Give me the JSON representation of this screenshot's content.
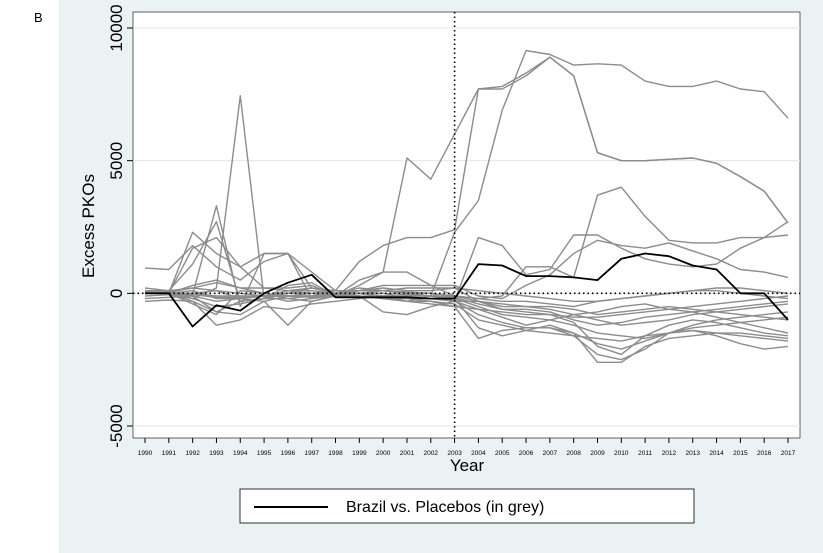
{
  "panel_label": "B",
  "legend": {
    "label": "Brazil vs. Placebos (in grey)"
  },
  "colors": {
    "background": "#eaf2f3",
    "plot": "#ffffff",
    "treated": "#000000",
    "placebo": "#8c8c8c",
    "grid": "#e6e6e6"
  },
  "chart_data": {
    "type": "line",
    "title": "",
    "xlabel": "Year",
    "ylabel": "Excess PKOs",
    "x": [
      1990,
      1991,
      1992,
      1993,
      1994,
      1995,
      1996,
      1997,
      1998,
      1999,
      2000,
      2001,
      2002,
      2003,
      2004,
      2005,
      2006,
      2007,
      2008,
      2009,
      2010,
      2011,
      2012,
      2013,
      2014,
      2015,
      2016,
      2017
    ],
    "xlim": [
      1990,
      2017
    ],
    "ylim": [
      -5000,
      10000
    ],
    "yticks": [
      -5000,
      0,
      5000,
      10000
    ],
    "ytick_labels": [
      "-5000",
      "0",
      "5000",
      "10000"
    ],
    "xtick_labels": [
      "1990",
      "1991",
      "1992",
      "1993",
      "1994",
      "1995",
      "1996",
      "1997",
      "1998",
      "1999",
      "2000",
      "2001",
      "2002",
      "2003",
      "2004",
      "2005",
      "2006",
      "2007",
      "2008",
      "2009",
      "2010",
      "2011",
      "2012",
      "2013",
      "2014",
      "2015",
      "2016",
      "2017"
    ],
    "grid": true,
    "intervention_year": 2003,
    "hline": 0,
    "legend_position": "bottom",
    "treated": {
      "name": "Brazil vs. Placebos (in grey)",
      "values": [
        0,
        0,
        -1250,
        -450,
        -650,
        0,
        400,
        700,
        -150,
        -150,
        -150,
        -150,
        -200,
        -200,
        1100,
        1050,
        650,
        650,
        600,
        500,
        1300,
        1500,
        1400,
        1050,
        900,
        0,
        0,
        -1000
      ]
    },
    "placebos": [
      [
        950,
        900,
        1800,
        1000,
        500,
        1200,
        1500,
        200,
        0,
        0,
        -200,
        -300,
        -100,
        2300,
        3500,
        6900,
        9150,
        9000,
        8600,
        8650,
        8600,
        8000,
        7800,
        7800,
        8000,
        7700,
        7600,
        6600
      ],
      [
        0,
        0,
        -50,
        3300,
        -500,
        1500,
        1500,
        800,
        100,
        1200,
        1800,
        2100,
        2100,
        2400,
        7700,
        7700,
        8200,
        8900,
        8200,
        5300,
        5000,
        5000,
        5050,
        5100,
        4900,
        4400,
        3850,
        2650
      ],
      [
        -100,
        -50,
        -200,
        200,
        7450,
        -200,
        100,
        0,
        -100,
        500,
        800,
        5100,
        4300,
        6000,
        7700,
        7800,
        8300,
        8900,
        8200,
        5300,
        5000,
        5000,
        5050,
        5100,
        4900,
        4400,
        3850,
        2650
      ],
      [
        0,
        0,
        -200,
        -500,
        -400,
        -200,
        0,
        200,
        0,
        200,
        100,
        0,
        0,
        -300,
        2100,
        1800,
        700,
        900,
        2200,
        2200,
        1700,
        1300,
        1100,
        1000,
        1100,
        1700,
        2100,
        2200
      ],
      [
        0,
        0,
        2300,
        1500,
        1000,
        1500,
        1500,
        -200,
        -100,
        300,
        800,
        800,
        300,
        -100,
        -200,
        -100,
        1000,
        1000,
        600,
        3700,
        4000,
        2900,
        2000,
        1900,
        1900,
        2100,
        2100,
        2700
      ],
      [
        0,
        0,
        1700,
        2100,
        1000,
        200,
        200,
        300,
        -100,
        100,
        300,
        300,
        300,
        300,
        -100,
        -200,
        300,
        700,
        1500,
        2000,
        1800,
        1700,
        1900,
        1600,
        1300,
        900,
        800,
        600
      ],
      [
        200,
        100,
        1100,
        2700,
        -300,
        -200,
        300,
        400,
        -100,
        0,
        0,
        -200,
        -200,
        -300,
        -600,
        -900,
        -1200,
        -1000,
        -800,
        -700,
        -500,
        -400,
        -600,
        -700,
        -900,
        -1100,
        -1300,
        -1500
      ],
      [
        -300,
        -250,
        -300,
        -1200,
        -1000,
        -500,
        -600,
        -400,
        -300,
        -200,
        -100,
        -300,
        -400,
        -500,
        -1700,
        -1400,
        -1300,
        -1300,
        -1600,
        -2300,
        -2500,
        -2100,
        -1500,
        -1400,
        -1600,
        -1900,
        -2100,
        -2000
      ],
      [
        -200,
        -150,
        -100,
        -700,
        -800,
        -300,
        -1200,
        -300,
        -100,
        -100,
        -700,
        -800,
        -500,
        -300,
        -300,
        -600,
        -700,
        -800,
        -1100,
        -2000,
        -2300,
        -1600,
        -1200,
        -1000,
        -1100,
        -1300,
        -1500,
        -1600
      ],
      [
        0,
        0,
        -400,
        -800,
        100,
        0,
        -200,
        -100,
        0,
        -100,
        -200,
        -200,
        -300,
        -400,
        -1000,
        -1200,
        -1400,
        -1500,
        -1600,
        -1700,
        -1800,
        -1600,
        -1500,
        -1400,
        -1500,
        -1600,
        -1700,
        -1800
      ],
      [
        0,
        0,
        100,
        -200,
        -200,
        -300,
        -100,
        -100,
        100,
        0,
        -100,
        -100,
        -100,
        -200,
        -500,
        -800,
        -900,
        -1000,
        -1200,
        -1500,
        -1600,
        -1700,
        -1500,
        -1300,
        -1200,
        -1100,
        -1000,
        -900
      ],
      [
        0,
        0,
        0,
        -100,
        -100,
        -100,
        -300,
        -200,
        0,
        0,
        -100,
        -100,
        -100,
        -300,
        -800,
        -1100,
        -1300,
        -1300,
        -1500,
        -1900,
        -2100,
        -1800,
        -1500,
        -1200,
        -1000,
        -900,
        -800,
        -700
      ],
      [
        50,
        50,
        200,
        400,
        200,
        200,
        100,
        200,
        100,
        100,
        100,
        200,
        200,
        200,
        -300,
        -500,
        -500,
        -600,
        -800,
        -1000,
        -1200,
        -1100,
        -1000,
        -800,
        -700,
        -600,
        -500,
        -400
      ],
      [
        0,
        0,
        -100,
        -300,
        -200,
        -100,
        0,
        0,
        0,
        -100,
        -200,
        -300,
        -300,
        -500,
        -600,
        -700,
        -800,
        -800,
        -900,
        -900,
        -800,
        -700,
        -600,
        -500,
        -400,
        -300,
        -200,
        -100
      ],
      [
        0,
        0,
        0,
        100,
        0,
        -100,
        -100,
        -100,
        0,
        100,
        200,
        100,
        100,
        200,
        100,
        0,
        -100,
        -200,
        -300,
        -300,
        -200,
        -100,
        0,
        100,
        100,
        0,
        -100,
        -200
      ],
      [
        0,
        0,
        -50,
        -150,
        -150,
        -100,
        -100,
        -150,
        -50,
        0,
        0,
        -50,
        -100,
        -150,
        -400,
        -600,
        -600,
        -700,
        -1000,
        -1200,
        -1100,
        -900,
        -800,
        -700,
        -600,
        -500,
        -400,
        -300
      ],
      [
        100,
        100,
        200,
        100,
        -200,
        -100,
        100,
        100,
        0,
        0,
        100,
        0,
        -100,
        -100,
        -300,
        -400,
        -500,
        -500,
        -600,
        -800,
        -700,
        -600,
        -500,
        -600,
        -700,
        -800,
        -900,
        -1000
      ],
      [
        0,
        0,
        -300,
        -700,
        -300,
        -200,
        -200,
        -300,
        -100,
        -100,
        -200,
        -200,
        -200,
        -200,
        -1300,
        -1600,
        -1400,
        -1200,
        -1500,
        -2600,
        -2600,
        -2000,
        -1700,
        -1600,
        -1500,
        -1500,
        -1600,
        -1700
      ],
      [
        0,
        0,
        300,
        500,
        200,
        0,
        -100,
        0,
        100,
        100,
        100,
        50,
        0,
        -100,
        -200,
        -300,
        -300,
        -400,
        -500,
        -300,
        -200,
        -100,
        0,
        100,
        200,
        200,
        100,
        0
      ]
    ]
  }
}
